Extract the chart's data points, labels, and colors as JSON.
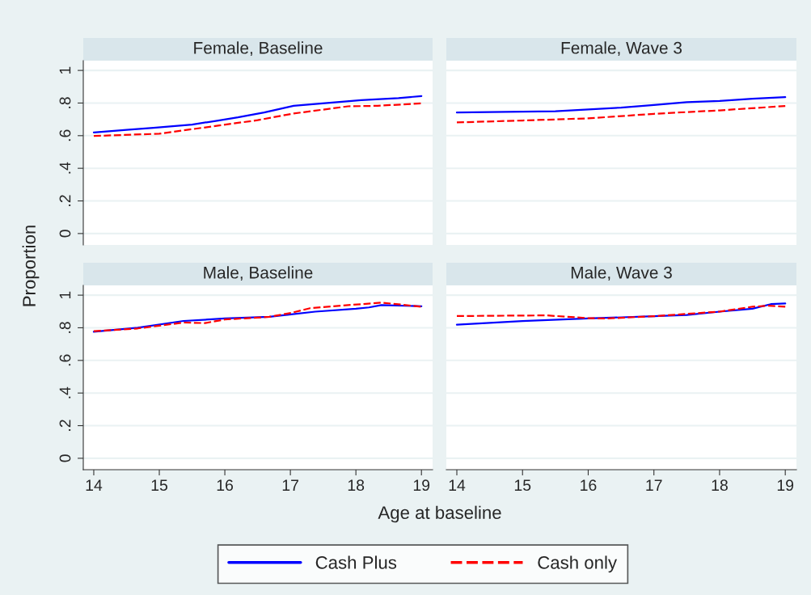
{
  "chart_data": [
    {
      "type": "line",
      "title": "Female, Baseline",
      "ylabel": "Proportion",
      "xlim": [
        13.84,
        19.17
      ],
      "ylim": [
        -0.07,
        1.06
      ],
      "yticks": [
        0,
        {
          "value": 0.2,
          "label": ".2"
        },
        {
          "value": 0.4,
          "label": ".4"
        },
        {
          "value": 0.6,
          "label": ".6"
        },
        {
          "value": 0.8,
          "label": ".8"
        },
        1
      ],
      "grid": "y",
      "tick_labels": "y",
      "legend": "bottom",
      "series": [
        {
          "name": "Cash Plus",
          "color": "#0000ff",
          "line_style": "solid",
          "x": [
            14,
            14.5,
            14.91,
            15.5,
            15.9,
            16.2,
            16.6,
            17.05,
            18.08,
            18.65,
            19
          ],
          "values": [
            0.62,
            0.636,
            0.648,
            0.668,
            0.693,
            0.712,
            0.742,
            0.783,
            0.818,
            0.83,
            0.843
          ]
        },
        {
          "name": "Cash only",
          "color": "#ff0000",
          "line_style": "dashed",
          "x": [
            14,
            15,
            15.94,
            16.5,
            17.05,
            17.88,
            18.33,
            19
          ],
          "values": [
            0.598,
            0.612,
            0.664,
            0.695,
            0.736,
            0.78,
            0.783,
            0.798
          ]
        }
      ]
    },
    {
      "type": "line",
      "title": "Female, Wave 3",
      "xlim": [
        13.84,
        19.17
      ],
      "ylim": [
        -0.07,
        1.06
      ],
      "yticks": [
        {
          "value": 0,
          "label": null
        },
        {
          "value": 0.2,
          "label": null
        },
        {
          "value": 0.4,
          "label": null
        },
        {
          "value": 0.6,
          "label": null
        },
        {
          "value": 0.8,
          "label": null
        },
        {
          "value": 1,
          "label": null
        }
      ],
      "grid": "y",
      "tick_labels": false,
      "series": [
        {
          "color": "#0000ff",
          "line_style": "solid",
          "x": [
            14,
            15.5,
            16.5,
            17,
            17.5,
            18,
            18.5,
            19
          ],
          "values": [
            0.742,
            0.75,
            0.772,
            0.788,
            0.805,
            0.813,
            0.826,
            0.836
          ]
        },
        {
          "color": "#ff0000",
          "line_style": "dashed",
          "x": [
            14,
            15,
            16,
            17,
            18,
            19
          ],
          "values": [
            0.681,
            0.693,
            0.706,
            0.734,
            0.755,
            0.782
          ]
        }
      ]
    },
    {
      "type": "line",
      "title": "Male, Baseline",
      "xlabel": "Age at baseline",
      "xlim": [
        13.84,
        19.17
      ],
      "ylim": [
        -0.07,
        1.06
      ],
      "xticks": [
        14,
        15,
        16,
        17,
        18,
        19
      ],
      "yticks": [
        0,
        {
          "value": 0.2,
          "label": ".2"
        },
        {
          "value": 0.4,
          "label": ".4"
        },
        {
          "value": 0.6,
          "label": ".6"
        },
        {
          "value": 0.8,
          "label": ".8"
        },
        1
      ],
      "grid": "y",
      "series": [
        {
          "color": "#0000ff",
          "line_style": "solid",
          "x": [
            14,
            14.67,
            15.37,
            16,
            16.68,
            17.01,
            17.38,
            18,
            18.2,
            18.39,
            19
          ],
          "values": [
            0.776,
            0.8,
            0.842,
            0.857,
            0.867,
            0.882,
            0.899,
            0.917,
            0.925,
            0.939,
            0.932
          ]
        },
        {
          "color": "#ff0000",
          "line_style": "dashed",
          "x": [
            14,
            14.67,
            15.37,
            15.7,
            16,
            16.68,
            17.01,
            17.3,
            17.92,
            18.39,
            18.7,
            19
          ],
          "values": [
            0.779,
            0.796,
            0.832,
            0.829,
            0.851,
            0.867,
            0.891,
            0.92,
            0.94,
            0.954,
            0.942,
            0.929
          ]
        }
      ]
    },
    {
      "type": "line",
      "title": "Male, Wave 3",
      "xlim": [
        13.84,
        19.17
      ],
      "ylim": [
        -0.07,
        1.06
      ],
      "xticks": [
        14,
        15,
        16,
        17,
        18,
        19
      ],
      "yticks": [
        {
          "value": 0,
          "label": null
        },
        {
          "value": 0.2,
          "label": null
        },
        {
          "value": 0.4,
          "label": null
        },
        {
          "value": 0.6,
          "label": null
        },
        {
          "value": 0.8,
          "label": null
        },
        {
          "value": 1,
          "label": null
        }
      ],
      "grid": "y",
      "tick_labels": "x",
      "series": [
        {
          "color": "#0000ff",
          "line_style": "solid",
          "x": [
            14,
            15,
            16,
            17,
            17.5,
            18,
            18.5,
            18.78,
            19
          ],
          "values": [
            0.819,
            0.841,
            0.857,
            0.871,
            0.879,
            0.899,
            0.917,
            0.945,
            0.949
          ]
        },
        {
          "color": "#ff0000",
          "line_style": "dashed",
          "x": [
            14,
            15.37,
            16,
            16.27,
            17,
            18,
            18.5,
            18.74,
            19
          ],
          "values": [
            0.872,
            0.876,
            0.859,
            0.857,
            0.871,
            0.899,
            0.929,
            0.935,
            0.929
          ]
        }
      ]
    }
  ]
}
